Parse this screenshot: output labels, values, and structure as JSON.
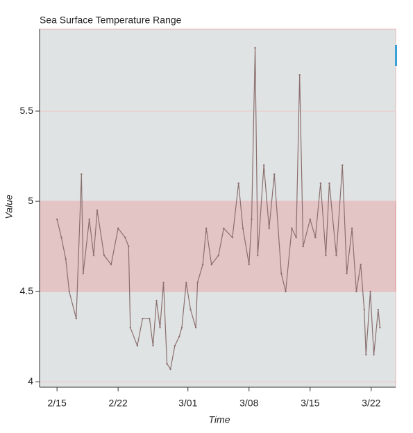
{
  "chart_data": {
    "type": "line",
    "title": "Sea Surface Temperature Range",
    "xlabel": "Time",
    "ylabel": "Value",
    "x": [
      0,
      0.5,
      1,
      1.4,
      2.2,
      2.8,
      3,
      3.7,
      4.2,
      4.6,
      5.4,
      6.2,
      7,
      7.8,
      8.2,
      8.4,
      9.2,
      9.8,
      10.6,
      11,
      11.4,
      11.8,
      12.2,
      12.6,
      13,
      13.5,
      14,
      14.3,
      14.8,
      15.3,
      15.9,
      16.1,
      16.7,
      17.1,
      17.7,
      18.5,
      19.1,
      20.1,
      20.8,
      21.3,
      22,
      22.3,
      22.7,
      23,
      23.7,
      24.3,
      24.9,
      25.7,
      26.2,
      26.9,
      27.4,
      27.8,
      28.2,
      29,
      29.6,
      30.2,
      30.8,
      31.2,
      32,
      32.7,
      33.2,
      33.8,
      34.3,
      34.8,
      35.2,
      35.4,
      35.9,
      36.3,
      36.8,
      37
    ],
    "series": [
      {
        "name": "Value",
        "color": "#8a6e6e",
        "values": [
          4.9,
          4.8,
          4.68,
          4.5,
          4.35,
          5.15,
          4.6,
          4.9,
          4.7,
          4.95,
          4.7,
          4.65,
          4.85,
          4.8,
          4.75,
          4.3,
          4.2,
          4.35,
          4.35,
          4.2,
          4.45,
          4.3,
          4.55,
          4.1,
          4.07,
          4.2,
          4.25,
          4.3,
          4.55,
          4.4,
          4.3,
          4.55,
          4.65,
          4.85,
          4.65,
          4.7,
          4.85,
          4.8,
          5.1,
          4.85,
          4.65,
          4.9,
          5.85,
          4.7,
          5.2,
          4.85,
          5.15,
          4.6,
          4.5,
          4.85,
          4.8,
          5.7,
          4.75,
          4.9,
          4.8,
          5.1,
          4.7,
          5.1,
          4.7,
          5.2,
          4.6,
          4.85,
          4.5,
          4.65,
          4.4,
          4.15,
          4.5,
          4.15,
          4.4,
          4.3
        ]
      }
    ],
    "band": [
      4.5,
      5
    ],
    "band_color": "#e8a0a0",
    "xlim": [
      -2,
      38.8
    ],
    "xticks": [
      {
        "value": 0,
        "label": "2/15"
      },
      {
        "value": 7,
        "label": "2/22"
      },
      {
        "value": 15,
        "label": "3/01"
      },
      {
        "value": 22,
        "label": "3/08"
      },
      {
        "value": 29,
        "label": "3/15"
      },
      {
        "value": 36,
        "label": "3/22"
      }
    ],
    "ylim": [
      3.97,
      5.954
    ],
    "yticks": [
      4,
      4.5,
      5,
      5.5
    ],
    "grid": true
  }
}
